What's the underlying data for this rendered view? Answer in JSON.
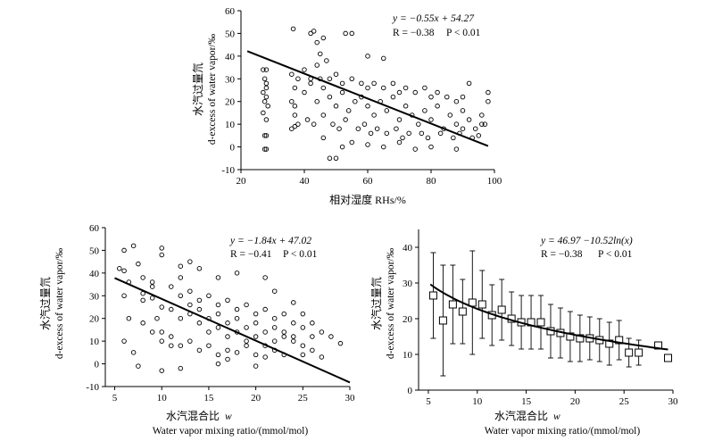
{
  "chart_data": [
    {
      "type": "scatter",
      "id": "rh",
      "xlabel": "相对湿度 RHs/%",
      "ylabel_cn": "水汽过量氘",
      "ylabel_en": "d-excess of water vapor/‰",
      "xlim": [
        20,
        100
      ],
      "ylim": [
        -10,
        60
      ],
      "xticks": [
        20,
        40,
        60,
        80,
        100
      ],
      "yticks": [
        -10,
        0,
        10,
        20,
        30,
        40,
        50,
        60
      ],
      "eq": "y = −0.55x + 54.27",
      "stat_r": "R = −0.38",
      "stat_p": "P < 0.01",
      "fit": {
        "kind": "linear",
        "slope": -0.55,
        "intercept": 54.27,
        "x_range": [
          22,
          98
        ]
      },
      "points": [
        [
          27,
          34
        ],
        [
          27.5,
          30
        ],
        [
          28,
          26
        ],
        [
          27,
          24
        ],
        [
          28,
          22
        ],
        [
          27.5,
          20
        ],
        [
          28,
          28
        ],
        [
          28.5,
          18
        ],
        [
          27,
          15
        ],
        [
          28,
          12
        ],
        [
          27.5,
          5
        ],
        [
          28,
          5
        ],
        [
          28,
          -1
        ],
        [
          27.5,
          -1
        ],
        [
          28,
          34
        ],
        [
          36,
          8
        ],
        [
          37,
          14
        ],
        [
          36,
          20
        ],
        [
          37,
          26
        ],
        [
          38,
          30
        ],
        [
          36.5,
          52
        ],
        [
          38,
          10
        ],
        [
          36,
          32
        ],
        [
          37,
          18
        ],
        [
          37,
          9
        ],
        [
          42,
          50
        ],
        [
          43,
          51
        ],
        [
          44,
          46
        ],
        [
          45,
          41
        ],
        [
          46,
          48
        ],
        [
          44,
          36
        ],
        [
          47,
          38
        ],
        [
          53,
          50
        ],
        [
          55,
          50
        ],
        [
          60,
          40
        ],
        [
          65,
          39
        ],
        [
          46,
          4
        ],
        [
          48,
          -5
        ],
        [
          50,
          -5
        ],
        [
          52,
          0
        ],
        [
          55,
          2
        ],
        [
          60,
          1
        ],
        [
          65,
          0
        ],
        [
          70,
          2
        ],
        [
          75,
          -1
        ],
        [
          80,
          0
        ],
        [
          88,
          -1
        ],
        [
          90,
          8
        ],
        [
          95,
          5
        ],
        [
          97,
          10
        ],
        [
          98,
          20
        ],
        [
          98,
          24
        ],
        [
          96,
          14
        ],
        [
          92,
          28
        ],
        [
          40,
          24
        ],
        [
          42,
          28
        ],
        [
          44,
          20
        ],
        [
          46,
          26
        ],
        [
          48,
          22
        ],
        [
          50,
          18
        ],
        [
          52,
          24
        ],
        [
          54,
          16
        ],
        [
          56,
          20
        ],
        [
          58,
          22
        ],
        [
          60,
          18
        ],
        [
          62,
          14
        ],
        [
          64,
          20
        ],
        [
          66,
          16
        ],
        [
          68,
          22
        ],
        [
          70,
          12
        ],
        [
          72,
          18
        ],
        [
          74,
          14
        ],
        [
          76,
          10
        ],
        [
          78,
          16
        ],
        [
          80,
          12
        ],
        [
          82,
          18
        ],
        [
          84,
          8
        ],
        [
          86,
          14
        ],
        [
          88,
          10
        ],
        [
          90,
          16
        ],
        [
          92,
          12
        ],
        [
          94,
          8
        ],
        [
          96,
          10
        ],
        [
          40,
          34
        ],
        [
          42,
          30
        ],
        [
          45,
          30
        ],
        [
          48,
          30
        ],
        [
          50,
          32
        ],
        [
          52,
          28
        ],
        [
          55,
          30
        ],
        [
          58,
          28
        ],
        [
          60,
          26
        ],
        [
          62,
          28
        ],
        [
          65,
          26
        ],
        [
          68,
          28
        ],
        [
          70,
          24
        ],
        [
          72,
          26
        ],
        [
          75,
          24
        ],
        [
          78,
          26
        ],
        [
          80,
          22
        ],
        [
          82,
          24
        ],
        [
          85,
          22
        ],
        [
          88,
          20
        ],
        [
          90,
          22
        ],
        [
          41,
          12
        ],
        [
          43,
          10
        ],
        [
          46,
          14
        ],
        [
          49,
          10
        ],
        [
          51,
          8
        ],
        [
          53,
          12
        ],
        [
          57,
          8
        ],
        [
          59,
          10
        ],
        [
          61,
          6
        ],
        [
          63,
          8
        ],
        [
          66,
          6
        ],
        [
          69,
          8
        ],
        [
          71,
          4
        ],
        [
          73,
          6
        ],
        [
          77,
          6
        ],
        [
          79,
          4
        ],
        [
          83,
          6
        ],
        [
          87,
          4
        ],
        [
          89,
          6
        ],
        [
          93,
          4
        ]
      ]
    },
    {
      "type": "scatter",
      "id": "w1",
      "xlabel_cn": "水汽混合比",
      "xlabel_var": "w",
      "xlabel_en": "Water vapor mixing ratio/(mmol/mol)",
      "ylabel_cn": "水汽过量氘",
      "ylabel_en": "d-excess of water vapor/‰",
      "xlim": [
        4,
        30
      ],
      "ylim": [
        -10,
        60
      ],
      "xticks": [
        5,
        10,
        15,
        20,
        25,
        30
      ],
      "yticks": [
        -10,
        0,
        10,
        20,
        30,
        40,
        50,
        60
      ],
      "eq": "y = −1.84x + 47.02",
      "stat_r": "R = −0.41",
      "stat_p": "P < 0.01",
      "fit": {
        "kind": "linear",
        "slope": -1.84,
        "intercept": 47.02,
        "x_range": [
          5,
          30
        ]
      },
      "points": [
        [
          5.5,
          42
        ],
        [
          6,
          41
        ],
        [
          6,
          50
        ],
        [
          7,
          52
        ],
        [
          7.5,
          44
        ],
        [
          10,
          51
        ],
        [
          10,
          48
        ],
        [
          13,
          45
        ],
        [
          12,
          43
        ],
        [
          6.5,
          36
        ],
        [
          6,
          30
        ],
        [
          6.5,
          20
        ],
        [
          6,
          10
        ],
        [
          7,
          5
        ],
        [
          7.5,
          -1
        ],
        [
          8,
          28
        ],
        [
          9,
          34
        ],
        [
          9.5,
          20
        ],
        [
          10,
          14
        ],
        [
          11,
          8
        ],
        [
          12,
          -2
        ],
        [
          10,
          -3
        ],
        [
          16,
          0
        ],
        [
          17,
          2
        ],
        [
          20,
          -1
        ],
        [
          21,
          3
        ],
        [
          25,
          4
        ],
        [
          26,
          6
        ],
        [
          27,
          3
        ],
        [
          28,
          12
        ],
        [
          29,
          9
        ],
        [
          27,
          14
        ],
        [
          26,
          18
        ],
        [
          25,
          22
        ],
        [
          24,
          27
        ],
        [
          22,
          32
        ],
        [
          21,
          38
        ],
        [
          18,
          40
        ],
        [
          16,
          38
        ],
        [
          14,
          42
        ],
        [
          12,
          38
        ],
        [
          8,
          31
        ],
        [
          9,
          29
        ],
        [
          10,
          25
        ],
        [
          11,
          24
        ],
        [
          12,
          20
        ],
        [
          13,
          22
        ],
        [
          14,
          18
        ],
        [
          15,
          20
        ],
        [
          16,
          16
        ],
        [
          17,
          18
        ],
        [
          18,
          14
        ],
        [
          19,
          16
        ],
        [
          20,
          12
        ],
        [
          21,
          14
        ],
        [
          22,
          10
        ],
        [
          23,
          12
        ],
        [
          24,
          10
        ],
        [
          25,
          8
        ],
        [
          8,
          18
        ],
        [
          9,
          14
        ],
        [
          10,
          10
        ],
        [
          11,
          12
        ],
        [
          12,
          8
        ],
        [
          13,
          10
        ],
        [
          14,
          6
        ],
        [
          15,
          8
        ],
        [
          16,
          4
        ],
        [
          17,
          6
        ],
        [
          18,
          5
        ],
        [
          19,
          8
        ],
        [
          20,
          4
        ],
        [
          22,
          6
        ],
        [
          23,
          4
        ],
        [
          8,
          38
        ],
        [
          9,
          36
        ],
        [
          11,
          34
        ],
        [
          12,
          30
        ],
        [
          13,
          32
        ],
        [
          14,
          28
        ],
        [
          15,
          30
        ],
        [
          16,
          26
        ],
        [
          17,
          28
        ],
        [
          18,
          24
        ],
        [
          19,
          26
        ],
        [
          20,
          22
        ],
        [
          21,
          24
        ],
        [
          22,
          20
        ],
        [
          23,
          22
        ],
        [
          24,
          18
        ],
        [
          25,
          16
        ],
        [
          26,
          12
        ],
        [
          13,
          26
        ],
        [
          14,
          24
        ],
        [
          15,
          14
        ],
        [
          16,
          22
        ],
        [
          17,
          12
        ],
        [
          18,
          20
        ],
        [
          19,
          10
        ],
        [
          20,
          18
        ],
        [
          21,
          8
        ],
        [
          22,
          16
        ],
        [
          23,
          14
        ],
        [
          24,
          12
        ]
      ]
    },
    {
      "type": "scatter",
      "id": "w2",
      "xlabel_cn": "水汽混合比",
      "xlabel_var": "w",
      "xlabel_en": "Water vapor mixing ratio/(mmol/mol)",
      "ylabel_cn": "水汽过量氘",
      "ylabel_en": "d-excess of water vapor/‰",
      "xlim": [
        4,
        30
      ],
      "ylim": [
        0,
        45
      ],
      "xticks": [
        5,
        10,
        15,
        20,
        25,
        30
      ],
      "yticks": [
        0,
        10,
        20,
        30,
        40
      ],
      "eq": "y = 46.97 −10.52ln(x)",
      "stat_r": "R = −0.38",
      "stat_p": "P < 0.01",
      "fit": {
        "kind": "log",
        "a": 46.97,
        "b": -10.52,
        "x_range": [
          5.2,
          29.5
        ]
      },
      "binned": [
        {
          "x": 5.5,
          "y": 26.5,
          "err": 12
        },
        {
          "x": 6.5,
          "y": 19.5,
          "err": 15.5
        },
        {
          "x": 7.5,
          "y": 24,
          "err": 11
        },
        {
          "x": 8.5,
          "y": 22,
          "err": 9
        },
        {
          "x": 9.5,
          "y": 24.5,
          "err": 14.5
        },
        {
          "x": 10.5,
          "y": 24,
          "err": 9.5
        },
        {
          "x": 11.5,
          "y": 21,
          "err": 8.5
        },
        {
          "x": 12.5,
          "y": 22.5,
          "err": 8.5
        },
        {
          "x": 13.5,
          "y": 20,
          "err": 7.5
        },
        {
          "x": 14.5,
          "y": 19,
          "err": 7.5
        },
        {
          "x": 15.5,
          "y": 19,
          "err": 7.5
        },
        {
          "x": 16.5,
          "y": 19,
          "err": 7.5
        },
        {
          "x": 17.5,
          "y": 16.5,
          "err": 7.5
        },
        {
          "x": 18.5,
          "y": 16,
          "err": 7
        },
        {
          "x": 19.5,
          "y": 15,
          "err": 7
        },
        {
          "x": 20.5,
          "y": 14.5,
          "err": 6.5
        },
        {
          "x": 21.5,
          "y": 14.5,
          "err": 6
        },
        {
          "x": 22.5,
          "y": 14,
          "err": 6
        },
        {
          "x": 23.5,
          "y": 13,
          "err": 6
        },
        {
          "x": 24.5,
          "y": 14,
          "err": 5.5
        },
        {
          "x": 25.5,
          "y": 10.5,
          "err": 4
        },
        {
          "x": 26.5,
          "y": 10.5,
          "err": 3.5
        },
        {
          "x": 28.5,
          "y": 12.5,
          "err": 0
        },
        {
          "x": 29.5,
          "y": 9,
          "err": 0
        }
      ]
    }
  ]
}
